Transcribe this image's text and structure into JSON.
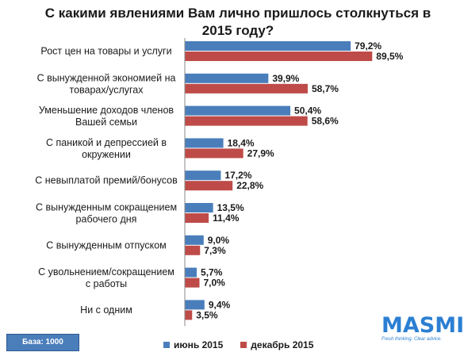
{
  "chart_data": {
    "type": "bar",
    "orientation": "horizontal",
    "title": "С какими явлениями Вам лично пришлось столкнуться в 2015 году?",
    "categories": [
      "Рост цен на товары и услуги",
      "С вынужденной экономией на товарах/услугах",
      "Уменьшение доходов членов Вашей семьи",
      "С паникой и депрессией в окружении",
      "С невыплатой премий/бонусов",
      "С вынужденным сокращением рабочего дня",
      "С вынужденным отпуском",
      "С увольнением/сокращением с работы",
      "Ни с одним"
    ],
    "series": [
      {
        "name": "июнь 2015",
        "color": "#4a7ebb",
        "values": [
          79.2,
          39.9,
          50.4,
          18.4,
          17.2,
          13.5,
          9.0,
          5.7,
          9.4
        ],
        "labels": [
          "79,2%",
          "39,9%",
          "50,4%",
          "18,4%",
          "17,2%",
          "13,5%",
          "9,0%",
          "5,7%",
          "9,4%"
        ]
      },
      {
        "name": "декабрь 2015",
        "color": "#be4b48",
        "values": [
          89.5,
          58.7,
          58.6,
          27.9,
          22.8,
          11.4,
          7.3,
          7.0,
          3.5
        ],
        "labels": [
          "89,5%",
          "58,7%",
          "58,6%",
          "27,9%",
          "22,8%",
          "11,4%",
          "7,3%",
          "7,0%",
          "3,5%"
        ]
      }
    ],
    "xlim": [
      0,
      100
    ],
    "grid": false,
    "legend_position": "bottom"
  },
  "base_label": "База:  1000",
  "logo": {
    "word": "MASMI",
    "tagline": "Fresh thinking. Clear advice."
  }
}
